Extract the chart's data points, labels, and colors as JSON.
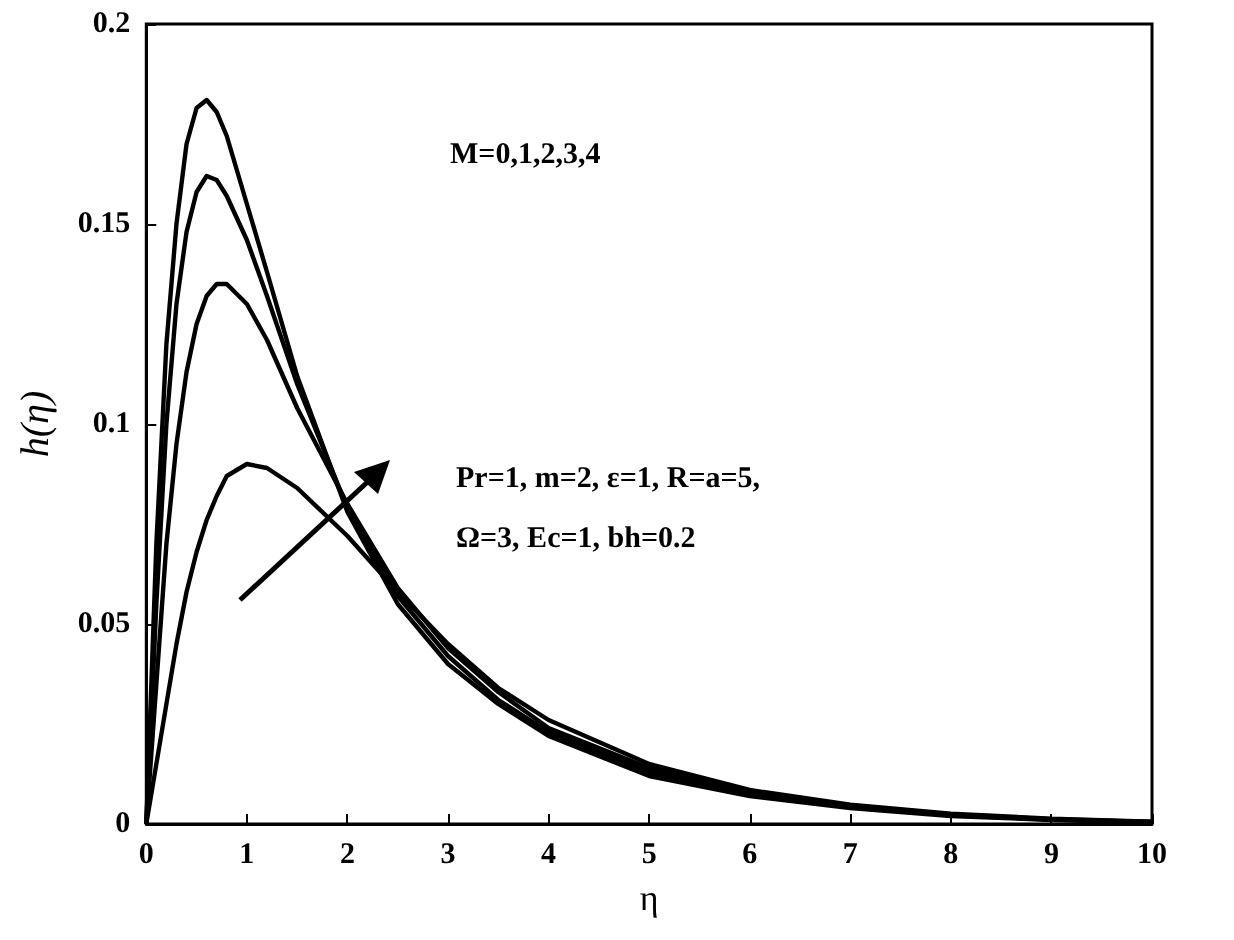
{
  "chart_data": {
    "type": "line",
    "xlabel": "η",
    "ylabel": "h(η)",
    "annotations": [
      "M=0,1,2,3,4",
      "Pr=1, m=2, ε=1, R=a=5,",
      "Ω=3, Ec=1, bh=0.2"
    ],
    "x": [
      0,
      0.1,
      0.2,
      0.3,
      0.4,
      0.5,
      0.6,
      0.7,
      0.8,
      1,
      1.2,
      1.5,
      2,
      2.5,
      3,
      3.5,
      4,
      5,
      6,
      7,
      8,
      9,
      10
    ],
    "series": [
      {
        "color": "#000000",
        "values": [
          0,
          0.07,
          0.12,
          0.15,
          0.17,
          0.179,
          0.181,
          0.178,
          0.172,
          0.155,
          0.138,
          0.112,
          0.078,
          0.055,
          0.04,
          0.03,
          0.022,
          0.012,
          0.007,
          0.004,
          0.002,
          0.001,
          0.0004
        ]
      },
      {
        "color": "#000000",
        "values": [
          0,
          0.055,
          0.1,
          0.13,
          0.148,
          0.158,
          0.162,
          0.161,
          0.157,
          0.146,
          0.132,
          0.11,
          0.079,
          0.057,
          0.042,
          0.031,
          0.023,
          0.013,
          0.0075,
          0.0042,
          0.0022,
          0.0011,
          0.0005
        ]
      },
      {
        "color": "#000000",
        "values": [
          0,
          0.035,
          0.07,
          0.095,
          0.113,
          0.125,
          0.132,
          0.135,
          0.135,
          0.13,
          0.121,
          0.104,
          0.08,
          0.059,
          0.044,
          0.033,
          0.024,
          0.014,
          0.008,
          0.0045,
          0.0024,
          0.0012,
          0.0005
        ]
      },
      {
        "color": "#000000",
        "values": [
          0,
          0.015,
          0.03,
          0.045,
          0.058,
          0.068,
          0.076,
          0.082,
          0.087,
          0.09,
          0.089,
          0.084,
          0.072,
          0.058,
          0.045,
          0.034,
          0.026,
          0.015,
          0.0085,
          0.0048,
          0.0026,
          0.0013,
          0.0006
        ]
      }
    ],
    "xlim": [
      0,
      10
    ],
    "xticks": [
      0,
      1,
      2,
      3,
      4,
      5,
      6,
      7,
      8,
      9,
      10
    ],
    "ylim": [
      0,
      0.2
    ],
    "yticks": [
      0,
      0.05,
      0.1,
      0.15,
      0.2
    ],
    "grid": false,
    "marker": "none",
    "line_style": "solid"
  }
}
